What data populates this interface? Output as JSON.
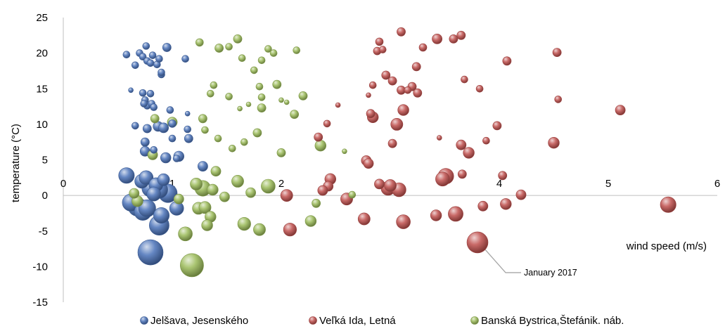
{
  "chart_data": {
    "type": "scatter",
    "subtype": "bubble",
    "xlabel": "wind speed (m/s)",
    "ylabel": "temperature (°C)",
    "xlim": [
      0,
      6
    ],
    "ylim": [
      -15,
      25
    ],
    "xticks": [
      0,
      1,
      2,
      3,
      4,
      5,
      6
    ],
    "yticks": [
      -15,
      -10,
      -5,
      0,
      5,
      10,
      15,
      20,
      25
    ],
    "grid": false,
    "legend_position": "bottom",
    "series": [
      {
        "name": "Jelšava, Jesenského",
        "color": "#4a72b8",
        "points": [
          {
            "x": 0.58,
            "y": 19.8,
            "s": 1
          },
          {
            "x": 0.66,
            "y": 18.3,
            "s": 1
          },
          {
            "x": 0.7,
            "y": 20.0,
            "s": 1
          },
          {
            "x": 0.73,
            "y": 19.5,
            "s": 1
          },
          {
            "x": 0.76,
            "y": 21.0,
            "s": 1
          },
          {
            "x": 0.77,
            "y": 18.9,
            "s": 1
          },
          {
            "x": 0.8,
            "y": 18.6,
            "s": 1
          },
          {
            "x": 0.82,
            "y": 19.7,
            "s": 1
          },
          {
            "x": 0.86,
            "y": 18.4,
            "s": 1
          },
          {
            "x": 0.88,
            "y": 19.2,
            "s": 1
          },
          {
            "x": 0.9,
            "y": 17.0,
            "s": 1
          },
          {
            "x": 0.9,
            "y": 17.3,
            "s": 1
          },
          {
            "x": 0.95,
            "y": 20.8,
            "s": 1.5
          },
          {
            "x": 1.12,
            "y": 19.2,
            "s": 1
          },
          {
            "x": 0.62,
            "y": 14.8,
            "s": 0.5
          },
          {
            "x": 0.73,
            "y": 14.4,
            "s": 1
          },
          {
            "x": 0.75,
            "y": 13.4,
            "s": 1
          },
          {
            "x": 0.77,
            "y": 12.6,
            "s": 1
          },
          {
            "x": 0.74,
            "y": 12.9,
            "s": 1
          },
          {
            "x": 0.8,
            "y": 14.3,
            "s": 1
          },
          {
            "x": 0.81,
            "y": 12.9,
            "s": 1
          },
          {
            "x": 0.83,
            "y": 12.4,
            "s": 1
          },
          {
            "x": 0.98,
            "y": 12.0,
            "s": 1
          },
          {
            "x": 1.14,
            "y": 11.5,
            "s": 0.5
          },
          {
            "x": 1.0,
            "y": 10.1,
            "s": 1.2
          },
          {
            "x": 0.66,
            "y": 9.8,
            "s": 1
          },
          {
            "x": 0.77,
            "y": 9.4,
            "s": 1.5
          },
          {
            "x": 0.87,
            "y": 9.7,
            "s": 2
          },
          {
            "x": 0.92,
            "y": 9.5,
            "s": 2
          },
          {
            "x": 1.14,
            "y": 9.3,
            "s": 1
          },
          {
            "x": 0.75,
            "y": 7.5,
            "s": 1.5
          },
          {
            "x": 0.75,
            "y": 6.2,
            "s": 2
          },
          {
            "x": 0.83,
            "y": 6.4,
            "s": 1
          },
          {
            "x": 1.0,
            "y": 8.0,
            "s": 1
          },
          {
            "x": 1.15,
            "y": 8.0,
            "s": 1.5
          },
          {
            "x": 0.94,
            "y": 5.3,
            "s": 2.2
          },
          {
            "x": 1.04,
            "y": 5.2,
            "s": 1
          },
          {
            "x": 1.06,
            "y": 5.5,
            "s": 2.2
          },
          {
            "x": 1.28,
            "y": 4.1,
            "s": 2
          },
          {
            "x": 0.58,
            "y": 2.8,
            "s": 5
          },
          {
            "x": 0.72,
            "y": 2.0,
            "s": 4
          },
          {
            "x": 0.76,
            "y": 2.5,
            "s": 4
          },
          {
            "x": 0.8,
            "y": 1.0,
            "s": 6
          },
          {
            "x": 0.85,
            "y": 1.5,
            "s": 4
          },
          {
            "x": 0.88,
            "y": 0.8,
            "s": 6
          },
          {
            "x": 0.92,
            "y": 2.2,
            "s": 3
          },
          {
            "x": 0.96,
            "y": 0.3,
            "s": 7
          },
          {
            "x": 0.62,
            "y": -1.0,
            "s": 6
          },
          {
            "x": 0.68,
            "y": -1.6,
            "s": 7
          },
          {
            "x": 0.73,
            "y": -2.3,
            "s": 6
          },
          {
            "x": 0.77,
            "y": -1.8,
            "s": 6
          },
          {
            "x": 0.83,
            "y": 0.2,
            "s": 4
          },
          {
            "x": 1.04,
            "y": -1.8,
            "s": 4
          },
          {
            "x": 0.9,
            "y": -2.8,
            "s": 5
          },
          {
            "x": 0.88,
            "y": -4.2,
            "s": 8
          },
          {
            "x": 0.8,
            "y": -8.0,
            "s": 13
          }
        ]
      },
      {
        "name": "Veľká Ida, Letná",
        "color": "#c0504d",
        "points": [
          {
            "x": 2.9,
            "y": 21.6,
            "s": 1.2
          },
          {
            "x": 3.1,
            "y": 23.0,
            "s": 1.5
          },
          {
            "x": 3.43,
            "y": 22.0,
            "s": 2
          },
          {
            "x": 3.58,
            "y": 22.0,
            "s": 1.5
          },
          {
            "x": 3.65,
            "y": 22.5,
            "s": 1.5
          },
          {
            "x": 2.88,
            "y": 20.3,
            "s": 1.2
          },
          {
            "x": 2.93,
            "y": 20.5,
            "s": 1
          },
          {
            "x": 3.3,
            "y": 20.8,
            "s": 1.2
          },
          {
            "x": 4.07,
            "y": 18.9,
            "s": 1.5
          },
          {
            "x": 4.53,
            "y": 20.1,
            "s": 1.5
          },
          {
            "x": 3.24,
            "y": 18.1,
            "s": 1.5
          },
          {
            "x": 2.96,
            "y": 16.9,
            "s": 1.5
          },
          {
            "x": 3.02,
            "y": 16.1,
            "s": 1.5
          },
          {
            "x": 3.1,
            "y": 14.8,
            "s": 1.5
          },
          {
            "x": 3.16,
            "y": 14.8,
            "s": 1
          },
          {
            "x": 3.2,
            "y": 15.3,
            "s": 1.5
          },
          {
            "x": 3.25,
            "y": 14.4,
            "s": 1.5
          },
          {
            "x": 2.84,
            "y": 15.5,
            "s": 1
          },
          {
            "x": 2.8,
            "y": 14.1,
            "s": 0.5
          },
          {
            "x": 3.68,
            "y": 16.3,
            "s": 1
          },
          {
            "x": 3.82,
            "y": 15.0,
            "s": 1
          },
          {
            "x": 4.54,
            "y": 13.5,
            "s": 1
          },
          {
            "x": 5.11,
            "y": 12.0,
            "s": 2
          },
          {
            "x": 2.82,
            "y": 11.5,
            "s": 1.5
          },
          {
            "x": 2.84,
            "y": 11.0,
            "s": 2.5
          },
          {
            "x": 3.12,
            "y": 12.0,
            "s": 2.5
          },
          {
            "x": 3.06,
            "y": 10.0,
            "s": 3
          },
          {
            "x": 2.52,
            "y": 12.7,
            "s": 0.5
          },
          {
            "x": 2.34,
            "y": 8.2,
            "s": 1.5
          },
          {
            "x": 2.42,
            "y": 10.1,
            "s": 1
          },
          {
            "x": 3.02,
            "y": 7.3,
            "s": 1.5
          },
          {
            "x": 3.45,
            "y": 8.1,
            "s": 0.5
          },
          {
            "x": 3.65,
            "y": 7.1,
            "s": 2
          },
          {
            "x": 3.72,
            "y": 6.0,
            "s": 2.5
          },
          {
            "x": 3.88,
            "y": 7.7,
            "s": 1
          },
          {
            "x": 3.98,
            "y": 9.8,
            "s": 1.5
          },
          {
            "x": 4.5,
            "y": 7.4,
            "s": 2.5
          },
          {
            "x": 2.78,
            "y": 4.9,
            "s": 2
          },
          {
            "x": 2.8,
            "y": 4.5,
            "s": 2
          },
          {
            "x": 2.45,
            "y": 2.3,
            "s": 2.5
          },
          {
            "x": 2.43,
            "y": 1.3,
            "s": 2
          },
          {
            "x": 2.38,
            "y": 0.7,
            "s": 2
          },
          {
            "x": 2.05,
            "y": 0.0,
            "s": 3
          },
          {
            "x": 2.6,
            "y": -0.5,
            "s": 3
          },
          {
            "x": 2.9,
            "y": 1.6,
            "s": 2
          },
          {
            "x": 2.98,
            "y": 1.0,
            "s": 4
          },
          {
            "x": 3.0,
            "y": 1.4,
            "s": 3
          },
          {
            "x": 3.08,
            "y": 0.8,
            "s": 4
          },
          {
            "x": 3.48,
            "y": 2.3,
            "s": 4
          },
          {
            "x": 3.51,
            "y": 2.7,
            "s": 5
          },
          {
            "x": 3.66,
            "y": 3.0,
            "s": 1.5
          },
          {
            "x": 4.03,
            "y": 2.8,
            "s": 1.5
          },
          {
            "x": 4.2,
            "y": 0.1,
            "s": 2
          },
          {
            "x": 4.06,
            "y": -1.2,
            "s": 2.5
          },
          {
            "x": 3.85,
            "y": -1.5,
            "s": 2
          },
          {
            "x": 5.55,
            "y": -1.3,
            "s": 5
          },
          {
            "x": 2.08,
            "y": -4.8,
            "s": 3.5
          },
          {
            "x": 2.76,
            "y": -3.3,
            "s": 3
          },
          {
            "x": 3.12,
            "y": -3.7,
            "s": 4
          },
          {
            "x": 3.42,
            "y": -2.8,
            "s": 2.5
          },
          {
            "x": 3.6,
            "y": -2.6,
            "s": 4.5
          },
          {
            "x": 3.8,
            "y": -6.6,
            "s": 9
          }
        ]
      },
      {
        "name": "Banská Bystrica,Štefánik. náb.",
        "color": "#9bbb59",
        "points": [
          {
            "x": 1.25,
            "y": 21.5,
            "s": 1.2
          },
          {
            "x": 1.43,
            "y": 20.7,
            "s": 1.5
          },
          {
            "x": 1.52,
            "y": 20.9,
            "s": 1
          },
          {
            "x": 1.6,
            "y": 22.0,
            "s": 1.5
          },
          {
            "x": 1.64,
            "y": 19.3,
            "s": 1
          },
          {
            "x": 1.88,
            "y": 20.6,
            "s": 1
          },
          {
            "x": 1.93,
            "y": 20.0,
            "s": 1
          },
          {
            "x": 2.14,
            "y": 20.4,
            "s": 1
          },
          {
            "x": 1.75,
            "y": 17.6,
            "s": 1
          },
          {
            "x": 1.82,
            "y": 19.0,
            "s": 1
          },
          {
            "x": 1.35,
            "y": 14.3,
            "s": 1
          },
          {
            "x": 1.38,
            "y": 15.5,
            "s": 1
          },
          {
            "x": 1.52,
            "y": 13.9,
            "s": 1
          },
          {
            "x": 1.62,
            "y": 12.2,
            "s": 0.5
          },
          {
            "x": 1.7,
            "y": 12.8,
            "s": 0.5
          },
          {
            "x": 1.8,
            "y": 15.3,
            "s": 1
          },
          {
            "x": 1.82,
            "y": 13.8,
            "s": 1
          },
          {
            "x": 1.96,
            "y": 15.6,
            "s": 1.5
          },
          {
            "x": 2.0,
            "y": 13.4,
            "s": 0.5
          },
          {
            "x": 2.05,
            "y": 13.1,
            "s": 0.5
          },
          {
            "x": 2.2,
            "y": 14.0,
            "s": 1.5
          },
          {
            "x": 1.82,
            "y": 12.3,
            "s": 1.5
          },
          {
            "x": 2.12,
            "y": 11.4,
            "s": 1.5
          },
          {
            "x": 1.28,
            "y": 10.8,
            "s": 1.5
          },
          {
            "x": 1.0,
            "y": 10.3,
            "s": 2
          },
          {
            "x": 0.84,
            "y": 10.8,
            "s": 1.5
          },
          {
            "x": 1.3,
            "y": 9.2,
            "s": 1
          },
          {
            "x": 1.42,
            "y": 8.0,
            "s": 1
          },
          {
            "x": 1.66,
            "y": 7.5,
            "s": 1
          },
          {
            "x": 1.78,
            "y": 8.8,
            "s": 1.5
          },
          {
            "x": 2.36,
            "y": 7.0,
            "s": 2.5
          },
          {
            "x": 2.58,
            "y": 6.2,
            "s": 0.5
          },
          {
            "x": 2.0,
            "y": 6.0,
            "s": 1.5
          },
          {
            "x": 1.55,
            "y": 6.6,
            "s": 1
          },
          {
            "x": 0.82,
            "y": 5.7,
            "s": 2
          },
          {
            "x": 1.4,
            "y": 3.4,
            "s": 2
          },
          {
            "x": 1.6,
            "y": 2.0,
            "s": 3
          },
          {
            "x": 1.88,
            "y": 1.3,
            "s": 4
          },
          {
            "x": 1.22,
            "y": 1.6,
            "s": 3
          },
          {
            "x": 1.28,
            "y": 1.0,
            "s": 5
          },
          {
            "x": 1.37,
            "y": 0.8,
            "s": 2.5
          },
          {
            "x": 1.24,
            "y": -1.8,
            "s": 3
          },
          {
            "x": 1.3,
            "y": -1.7,
            "s": 3
          },
          {
            "x": 1.35,
            "y": -3.0,
            "s": 2.5
          },
          {
            "x": 1.32,
            "y": -4.2,
            "s": 2.5
          },
          {
            "x": 1.66,
            "y": -4.0,
            "s": 3.5
          },
          {
            "x": 1.8,
            "y": -4.8,
            "s": 3
          },
          {
            "x": 1.12,
            "y": -5.4,
            "s": 4
          },
          {
            "x": 1.18,
            "y": -9.8,
            "s": 11
          },
          {
            "x": 0.65,
            "y": 0.3,
            "s": 2
          },
          {
            "x": 0.68,
            "y": -0.8,
            "s": 2.5
          },
          {
            "x": 1.06,
            "y": -0.5,
            "s": 2
          },
          {
            "x": 1.48,
            "y": -0.2,
            "s": 2
          },
          {
            "x": 1.72,
            "y": 0.4,
            "s": 2
          },
          {
            "x": 2.32,
            "y": -1.1,
            "s": 1.5
          },
          {
            "x": 2.65,
            "y": 0.1,
            "s": 1
          },
          {
            "x": 2.27,
            "y": -3.6,
            "s": 2.5
          }
        ]
      }
    ],
    "annotations": [
      {
        "text": "January 2017",
        "series": "Veľká Ida, Letná",
        "x": 3.8,
        "y": -6.6
      }
    ]
  }
}
